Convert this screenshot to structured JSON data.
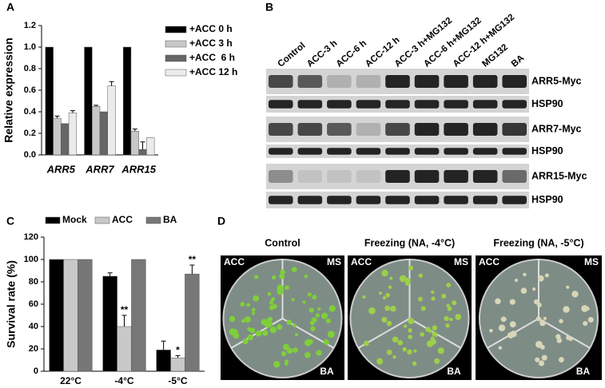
{
  "panels": [
    "A",
    "B",
    "C",
    "D"
  ],
  "chart_data": [
    {
      "type": "bar",
      "y_label": "Relative expression",
      "categories": [
        "ARR5",
        "ARR7",
        "ARR15"
      ],
      "series": [
        {
          "name": "+ACC 0 h",
          "color": "#000000",
          "values": [
            1.0,
            1.0,
            1.0
          ],
          "errors": [
            0,
            0,
            0
          ]
        },
        {
          "name": "+ACC 3 h",
          "color": "#c8c8c8",
          "values": [
            0.34,
            0.45,
            0.22
          ],
          "errors": [
            0.02,
            0.01,
            0.02
          ]
        },
        {
          "name": "+ACC  6 h",
          "color": "#666666",
          "values": [
            0.29,
            0.4,
            0.05
          ],
          "errors": [
            0,
            0,
            0.07
          ]
        },
        {
          "name": "+ACC 12 h",
          "color": "#ebebeb",
          "values": [
            0.39,
            0.64,
            0.16
          ],
          "errors": [
            0.02,
            0.04,
            0
          ]
        }
      ],
      "ylim": [
        0,
        1.2
      ],
      "yticks": [
        {
          "value": 0,
          "label": "0.0"
        },
        0.2,
        0.4,
        0.6,
        0.8,
        {
          "value": 1,
          "label": "1.0"
        },
        1.2
      ]
    },
    {
      "type": "bar",
      "y_label": "Survival rate (%)",
      "categories": [
        "22°C",
        "-4°C",
        "-5°C"
      ],
      "series": [
        {
          "name": "Mock",
          "color": "#000000",
          "values": [
            100,
            85,
            19
          ],
          "errors": [
            0,
            3,
            8
          ],
          "significance": [
            null,
            null,
            null
          ]
        },
        {
          "name": "ACC",
          "color": "#c8c8c8",
          "values": [
            100,
            40,
            12
          ],
          "errors": [
            0,
            10,
            2
          ],
          "significance": [
            null,
            "**",
            "*"
          ]
        },
        {
          "name": "BA",
          "color": "#777777",
          "values": [
            100,
            100,
            87
          ],
          "errors": [
            0,
            0,
            8
          ],
          "significance": [
            null,
            null,
            "**"
          ]
        }
      ],
      "ylim": [
        0,
        120
      ],
      "yticks": [
        0,
        20,
        40,
        60,
        80,
        100,
        120
      ]
    }
  ],
  "blot": {
    "lanes": [
      "Control",
      "ACC-3 h",
      "ACC-6 h",
      "ACC-12 h",
      "ACC-3 h+MG132",
      "ACC-6 h+MG132",
      "ACC-12 h+MG132",
      "MG132",
      "BA"
    ],
    "rows": [
      "ARR5-Myc",
      "HSP90",
      "ARR7-Myc",
      "HSP90",
      "ARR15-Myc",
      "HSP90"
    ]
  },
  "photos": {
    "titles": [
      "Control",
      "Freezing (NA, -4°C)",
      "Freezing (NA, -5°C)"
    ],
    "plate_labels": [
      "ACC",
      "MS",
      "BA"
    ]
  }
}
